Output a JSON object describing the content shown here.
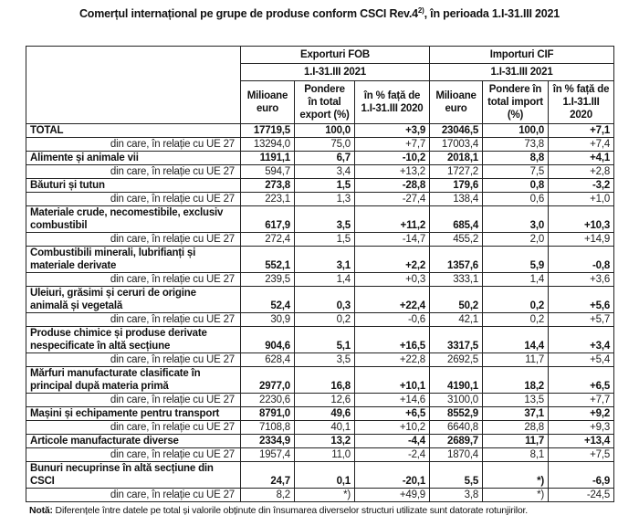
{
  "title": "Comerțul internațional pe grupe de produse conform CSCI Rev.4",
  "title_sup": "2)",
  "title_suffix": ", în perioada 1.I-31.III 2021",
  "header": {
    "exports": "Exporturi FOB",
    "imports": "Importuri CIF",
    "period_exports": "1.I-31.III 2021",
    "period_imports": "1.I-31.III 2021",
    "columns": [
      "Milioane euro",
      "Pondere în total export (%)",
      "în % față de 1.I-31.III 2020",
      "Milioane euro",
      "Pondere în total import (%)",
      "în % față de 1.I-31.III 2020"
    ]
  },
  "rows": [
    {
      "label": "TOTAL",
      "values": [
        "17719,5",
        "100,0",
        "+3,9",
        "23046,5",
        "100,0",
        "+7,1"
      ]
    },
    {
      "label": "din care, în relație cu UE 27",
      "values": [
        "13294,0",
        "75,0",
        "+7,7",
        "17003,4",
        "73,8",
        "+7,4"
      ]
    },
    {
      "label": "Alimente și animale vii",
      "values": [
        "1191,1",
        "6,7",
        "-10,2",
        "2018,1",
        "8,8",
        "+4,1"
      ]
    },
    {
      "label": "din care, în relație cu UE 27",
      "values": [
        "594,7",
        "3,4",
        "+13,2",
        "1727,2",
        "7,5",
        "+2,8"
      ]
    },
    {
      "label": "Băuturi și tutun",
      "values": [
        "273,8",
        "1,5",
        "-28,8",
        "179,6",
        "0,8",
        "-3,2"
      ]
    },
    {
      "label": "din care, în relație cu UE 27",
      "values": [
        "223,1",
        "1,3",
        "-27,4",
        "138,4",
        "0,6",
        "+1,0"
      ]
    },
    {
      "label": "Materiale crude, necomestibile, exclusiv combustibil",
      "values": [
        "617,9",
        "3,5",
        "+11,2",
        "685,4",
        "3,0",
        "+10,3"
      ]
    },
    {
      "label": "din care, în relație cu UE 27",
      "values": [
        "272,4",
        "1,5",
        "-14,7",
        "455,2",
        "2,0",
        "+14,9"
      ]
    },
    {
      "label": "Combustibili minerali, lubrifianți și materiale derivate",
      "values": [
        "552,1",
        "3,1",
        "+2,2",
        "1357,6",
        "5,9",
        "-0,8"
      ]
    },
    {
      "label": "din care, în relație cu UE 27",
      "values": [
        "239,5",
        "1,4",
        "+0,3",
        "333,1",
        "1,4",
        "+3,6"
      ]
    },
    {
      "label": "Uleiuri, grăsimi și ceruri de origine animală și vegetală",
      "values": [
        "52,4",
        "0,3",
        "+22,4",
        "50,2",
        "0,2",
        "+5,6"
      ]
    },
    {
      "label": "din care, în relație cu UE 27",
      "values": [
        "30,9",
        "0,2",
        "-0,6",
        "42,1",
        "0,2",
        "+5,7"
      ]
    },
    {
      "label": "Produse chimice și produse derivate nespecificate în altă secțiune",
      "values": [
        "904,6",
        "5,1",
        "+16,5",
        "3317,5",
        "14,4",
        "+3,4"
      ]
    },
    {
      "label": "din care, în relație cu UE 27",
      "values": [
        "628,4",
        "3,5",
        "+22,8",
        "2692,5",
        "11,7",
        "+5,4"
      ]
    },
    {
      "label": "Mărfuri manufacturate clasificate în principal după materia primă",
      "values": [
        "2977,0",
        "16,8",
        "+10,1",
        "4190,1",
        "18,2",
        "+6,5"
      ]
    },
    {
      "label": "din care, în relație cu UE 27",
      "values": [
        "2230,6",
        "12,6",
        "+14,6",
        "3100,0",
        "13,5",
        "+7,7"
      ]
    },
    {
      "label": "Mașini și echipamente pentru transport",
      "values": [
        "8791,0",
        "49,6",
        "+6,5",
        "8552,9",
        "37,1",
        "+9,2"
      ]
    },
    {
      "label": "din care, în relație cu UE 27",
      "values": [
        "7108,8",
        "40,1",
        "+10,2",
        "6640,8",
        "28,8",
        "+9,3"
      ]
    },
    {
      "label": "Articole manufacturate diverse",
      "values": [
        "2334,9",
        "13,2",
        "-4,4",
        "2689,7",
        "11,7",
        "+13,4"
      ]
    },
    {
      "label": "din care, în relație cu UE 27",
      "values": [
        "1957,4",
        "11,0",
        "-2,4",
        "1870,4",
        "8,1",
        "+7,5"
      ]
    },
    {
      "label": "Bunuri necuprinse în altă secțiune din CSCI",
      "values": [
        "24,7",
        "0,1",
        "-20,1",
        "5,5",
        "*)",
        "-6,9"
      ]
    },
    {
      "label": "din care, în relație cu UE 27",
      "values": [
        "8,2",
        "*)",
        "+49,9",
        "3,8",
        "*)",
        "-24,5"
      ]
    }
  ],
  "note_label": "Notă:",
  "note_text": " Diferențele între datele pe total și valorile obținute din însumarea diverselor structuri utilizate sunt datorate rotunjirilor."
}
